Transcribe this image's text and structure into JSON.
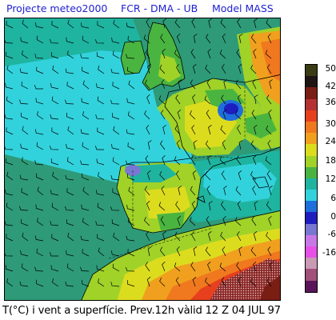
{
  "header": {
    "project": "Projecte meteo2000",
    "institutions": "FCR - DMA - UB",
    "model": "Model  MASS"
  },
  "caption": "T(°C) i vent a superfície. Prev.12h vàlid 12 Z 04 JUL 97",
  "legend": {
    "swatches": [
      "#3c3c14",
      "#1e1414",
      "#7a1e14",
      "#b43232",
      "#e6401e",
      "#f0781e",
      "#f0a01e",
      "#dcdc1e",
      "#a0d228",
      "#4ab440",
      "#1eb4a0",
      "#32d2dc",
      "#1e6edc",
      "#1e1ebe",
      "#7878d2",
      "#c878e6",
      "#e650e6",
      "#c89ab4",
      "#a0507a",
      "#5a145a"
    ],
    "labels": [
      "50",
      "42",
      "36",
      "30",
      "24",
      "18",
      "12",
      "6",
      "0",
      "-6",
      "-16"
    ]
  },
  "colors": {
    "header_text": "#1e1ed2",
    "sea_atlantic": "#2e9a78",
    "sea_cool": "#1ec8c8",
    "land_warm": "#a0d228",
    "land_hot": "#f0781e"
  }
}
